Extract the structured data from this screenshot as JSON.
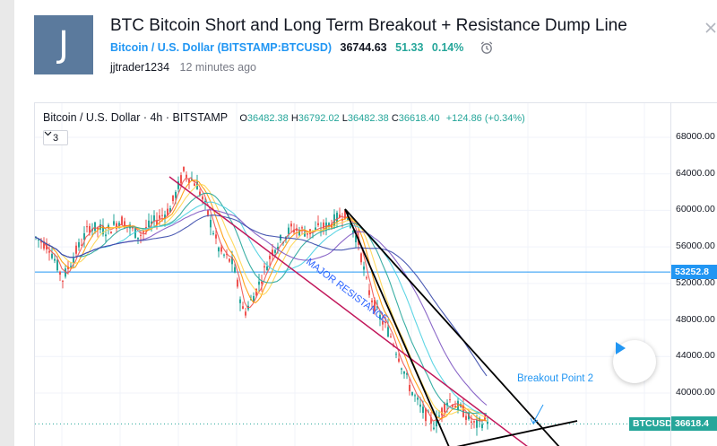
{
  "header": {
    "avatar_letter": "J",
    "title": "BTC Bitcoin Short and Long Term Breakout + Resistance Dump Line",
    "symbol_name": "Bitcoin / U.S. Dollar",
    "symbol_code": "(BITSTAMP:BTCUSD)",
    "price": "36744.63",
    "change": "51.33",
    "change_pct": "0.14%",
    "author": "jjtrader1234",
    "published": "12 minutes ago"
  },
  "chart": {
    "legend_title": "Bitcoin / U.S. Dollar · 4h · BITSTAMP",
    "ohlc": {
      "o_label": "O",
      "o": "36482.38",
      "h_label": "H",
      "h": "36792.02",
      "l_label": "L",
      "l": "36482.38",
      "c_label": "C",
      "c": "36618.40",
      "change": "+124.86 (+0.34%)"
    },
    "indicator_count": "3",
    "indicator_toggle_icon": "chevron-down-icon",
    "y_ticks": [
      "68000.00",
      "64000.00",
      "60000.00",
      "56000.00",
      "52000.00",
      "48000.00",
      "44000.00",
      "40000.00"
    ],
    "horizontal_line_label": "53252.8",
    "last_price_label": "36618.4",
    "symbol_tag": "BTCUSD",
    "annotations": {
      "major_resistance": "MAJOR RESISTANCE",
      "breakout_point": "Breakout Point 2"
    },
    "colors": {
      "up": "#26a69a",
      "down": "#ef5350",
      "horizontal_line": "#2196f3",
      "resistance_line": "#c2185b",
      "accent": "#2196f3"
    }
  }
}
